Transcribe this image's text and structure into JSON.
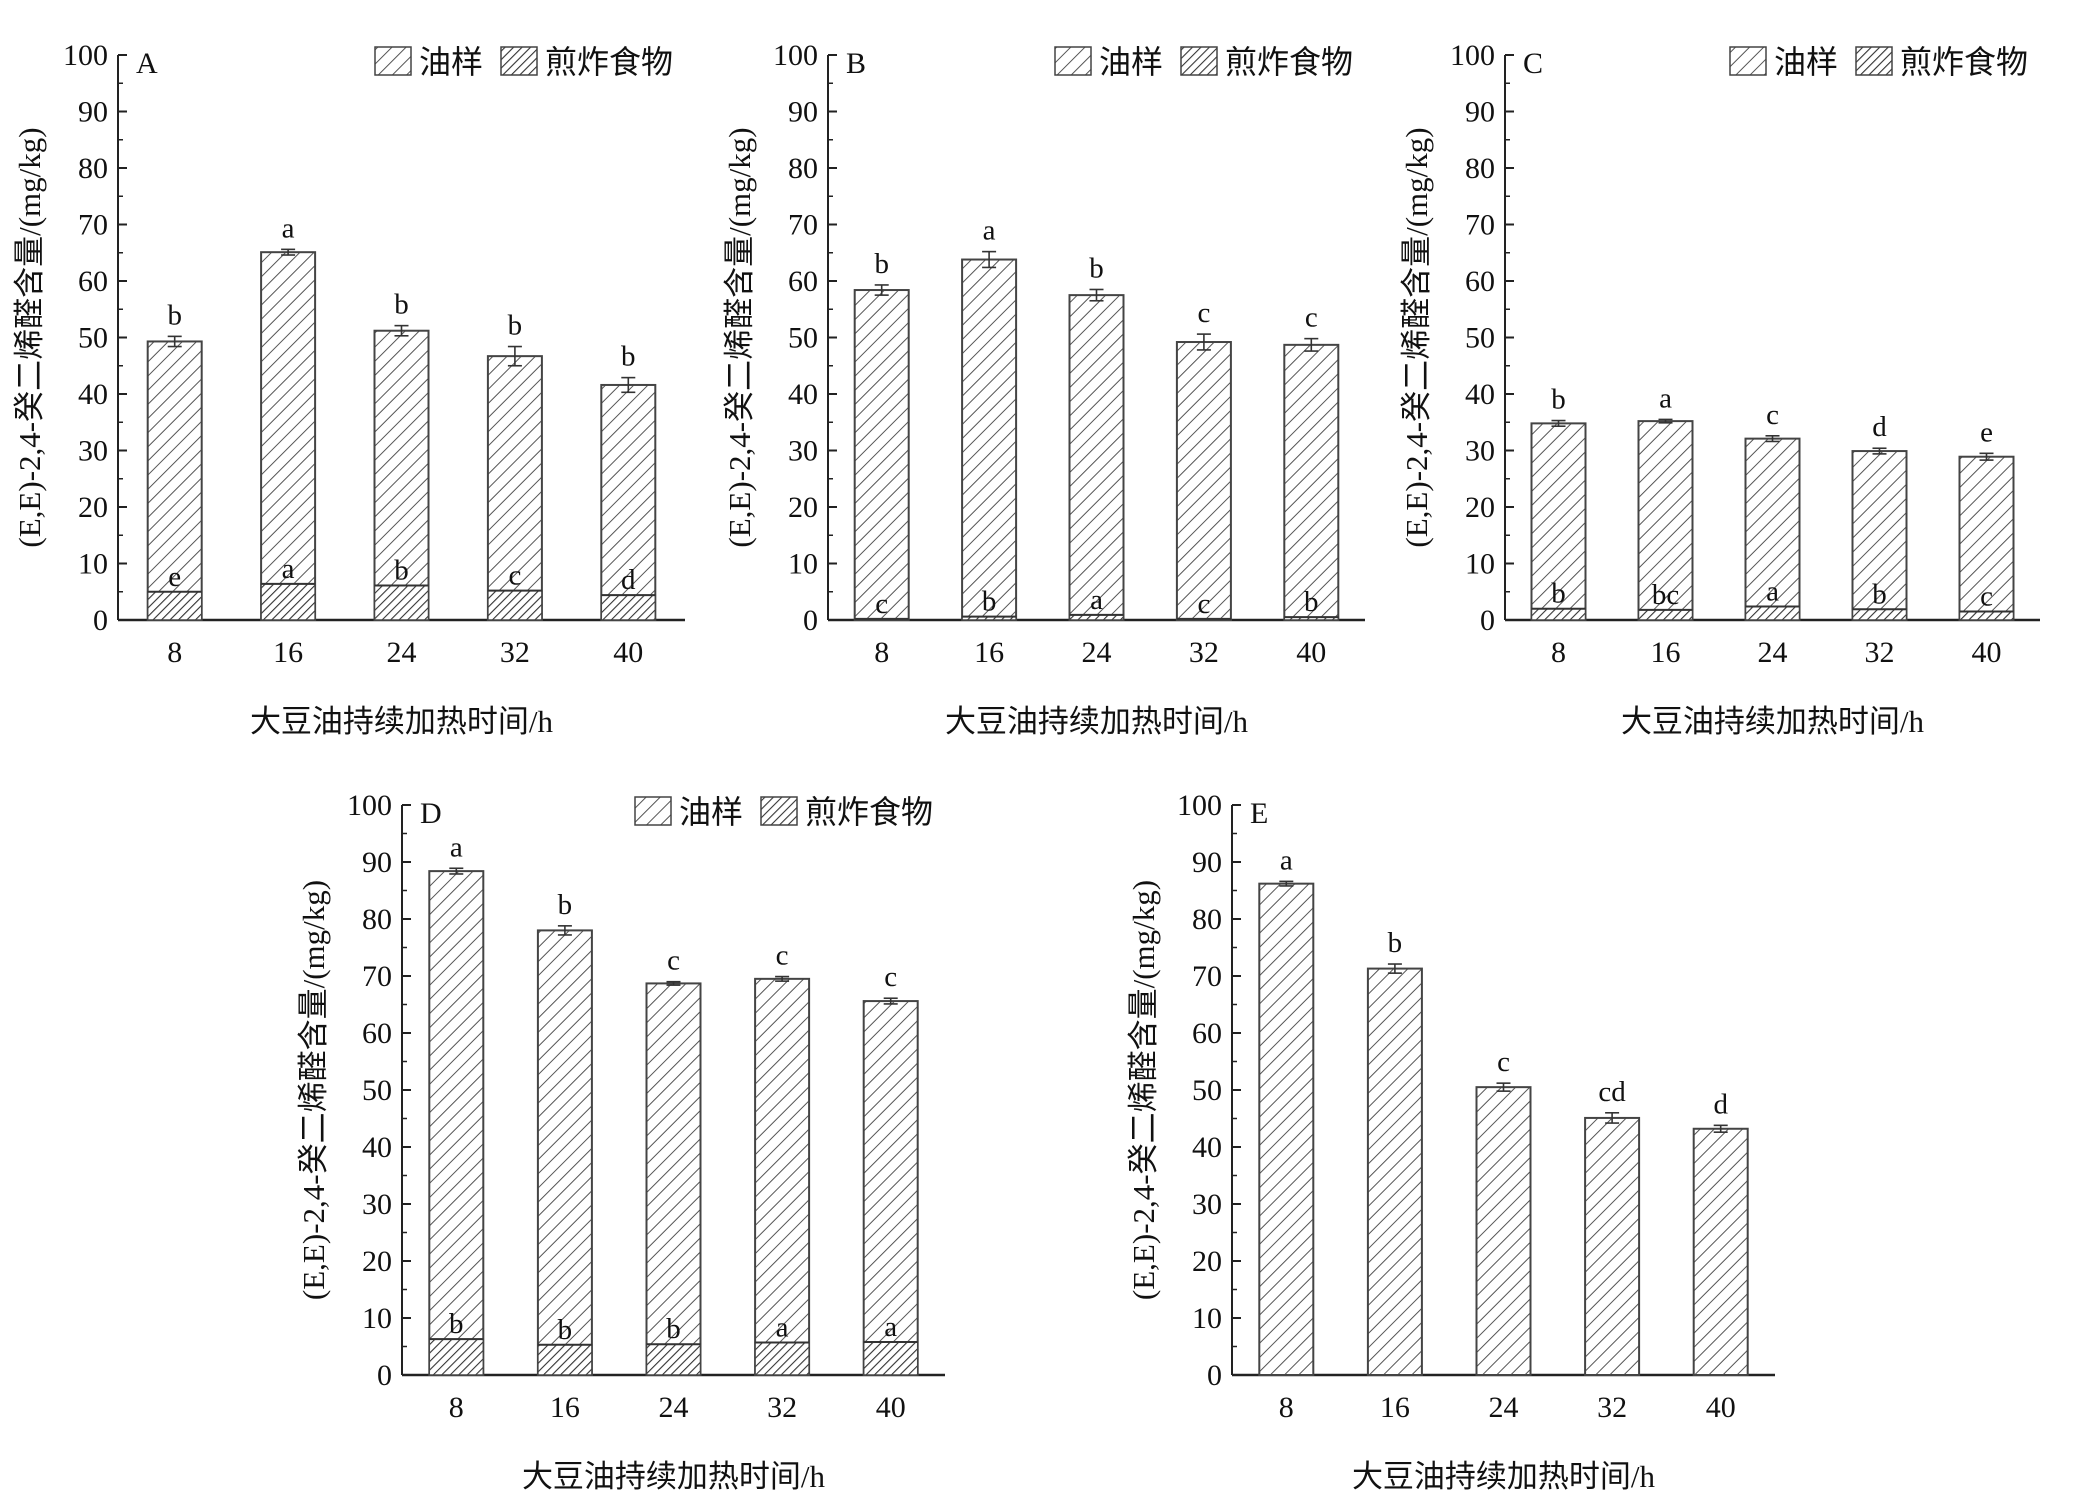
{
  "figure": {
    "legend": {
      "oil_label": "油样",
      "food_label": "煎炸食物"
    },
    "colors": {
      "axis": "#222222",
      "bar_fill": "#ffffff",
      "hatch_oil": "#555555",
      "hatch_food": "#333333"
    }
  },
  "chart_data": [
    {
      "panel": "A",
      "type": "bar",
      "stacked": true,
      "categories": [
        "8",
        "16",
        "24",
        "32",
        "40"
      ],
      "series": [
        {
          "name": "油样",
          "values": [
            49.3,
            65.1,
            51.2,
            46.7,
            41.6
          ],
          "errors": [
            0.9,
            0.5,
            0.9,
            1.7,
            1.3
          ],
          "labels": [
            "b",
            "a",
            "b",
            "b",
            "b"
          ]
        },
        {
          "name": "煎炸食物",
          "values": [
            5.0,
            6.4,
            6.1,
            5.2,
            4.4
          ],
          "errors": [
            0.2,
            0.2,
            0.2,
            0.2,
            0.2
          ],
          "labels": [
            "e",
            "a",
            "b",
            "c",
            "d"
          ]
        }
      ],
      "xlabel": "大豆油持续加热时间/h",
      "ylabel": "(E,E)-2,4-癸二烯醛含量/(mg/kg)",
      "ylim": [
        0,
        100
      ],
      "yticks": [
        0,
        10,
        20,
        30,
        40,
        50,
        60,
        70,
        80,
        90,
        100
      ],
      "legend_position": "top-right"
    },
    {
      "panel": "B",
      "type": "bar",
      "stacked": true,
      "categories": [
        "8",
        "16",
        "24",
        "32",
        "40"
      ],
      "series": [
        {
          "name": "油样",
          "values": [
            58.4,
            63.8,
            57.5,
            49.2,
            48.7
          ],
          "errors": [
            0.9,
            1.4,
            1.0,
            1.4,
            1.1
          ],
          "labels": [
            "b",
            "a",
            "b",
            "c",
            "c"
          ]
        },
        {
          "name": "煎炸食物",
          "values": [
            0.2,
            0.6,
            0.9,
            0.2,
            0.5
          ],
          "errors": [
            0.05,
            0.1,
            0.1,
            0.05,
            0.1
          ],
          "labels": [
            "c",
            "b",
            "a",
            "c",
            "b"
          ]
        }
      ],
      "xlabel": "大豆油持续加热时间/h",
      "ylabel": "(E,E)-2,4-癸二烯醛含量/(mg/kg)",
      "ylim": [
        0,
        100
      ],
      "yticks": [
        0,
        10,
        20,
        30,
        40,
        50,
        60,
        70,
        80,
        90,
        100
      ],
      "legend_position": "top-right"
    },
    {
      "panel": "C",
      "type": "bar",
      "stacked": true,
      "categories": [
        "8",
        "16",
        "24",
        "32",
        "40"
      ],
      "series": [
        {
          "name": "油样",
          "values": [
            34.8,
            35.2,
            32.1,
            29.9,
            28.9
          ],
          "errors": [
            0.5,
            0.3,
            0.5,
            0.5,
            0.6
          ],
          "labels": [
            "b",
            "a",
            "c",
            "d",
            "e"
          ]
        },
        {
          "name": "煎炸食物",
          "values": [
            2.0,
            1.8,
            2.4,
            1.9,
            1.5
          ],
          "errors": [
            0.1,
            0.1,
            0.1,
            0.1,
            0.1
          ],
          "labels": [
            "b",
            "bc",
            "a",
            "b",
            "c"
          ]
        }
      ],
      "xlabel": "大豆油持续加热时间/h",
      "ylabel": "(E,E)-2,4-癸二烯醛含量/(mg/kg)",
      "ylim": [
        0,
        100
      ],
      "yticks": [
        0,
        10,
        20,
        30,
        40,
        50,
        60,
        70,
        80,
        90,
        100
      ],
      "legend_position": "top-right"
    },
    {
      "panel": "D",
      "type": "bar",
      "stacked": true,
      "categories": [
        "8",
        "16",
        "24",
        "32",
        "40"
      ],
      "series": [
        {
          "name": "油样",
          "values": [
            88.4,
            78.0,
            68.7,
            69.5,
            65.6
          ],
          "errors": [
            0.5,
            0.8,
            0.3,
            0.4,
            0.5
          ],
          "labels": [
            "a",
            "b",
            "c",
            "c",
            "c"
          ]
        },
        {
          "name": "煎炸食物",
          "values": [
            6.3,
            5.3,
            5.4,
            5.7,
            5.8
          ],
          "errors": [
            0.2,
            0.2,
            0.2,
            0.2,
            0.2
          ],
          "labels": [
            "b",
            "b",
            "b",
            "a",
            "a"
          ]
        }
      ],
      "xlabel": "大豆油持续加热时间/h",
      "ylabel": "(E,E)-2,4-癸二烯醛含量/(mg/kg)",
      "ylim": [
        0,
        100
      ],
      "yticks": [
        0,
        10,
        20,
        30,
        40,
        50,
        60,
        70,
        80,
        90,
        100
      ],
      "legend_position": "top-right"
    },
    {
      "panel": "E",
      "type": "bar",
      "stacked": false,
      "categories": [
        "8",
        "16",
        "24",
        "32",
        "40"
      ],
      "series": [
        {
          "name": "油样",
          "values": [
            86.2,
            71.3,
            50.5,
            45.1,
            43.2
          ],
          "errors": [
            0.4,
            0.8,
            0.7,
            0.9,
            0.6
          ],
          "labels": [
            "a",
            "b",
            "c",
            "cd",
            "d"
          ]
        }
      ],
      "xlabel": "大豆油持续加热时间/h",
      "ylabel": "(E,E)-2,4-癸二烯醛含量/(mg/kg)",
      "ylim": [
        0,
        100
      ],
      "yticks": [
        0,
        10,
        20,
        30,
        40,
        50,
        60,
        70,
        80,
        90,
        100
      ],
      "ytick_labels": [
        "0",
        "10",
        "20",
        "30",
        "40",
        "50",
        "60",
        "70",
        "80",
        "90",
        "100"
      ],
      "legend_position": "none"
    }
  ]
}
